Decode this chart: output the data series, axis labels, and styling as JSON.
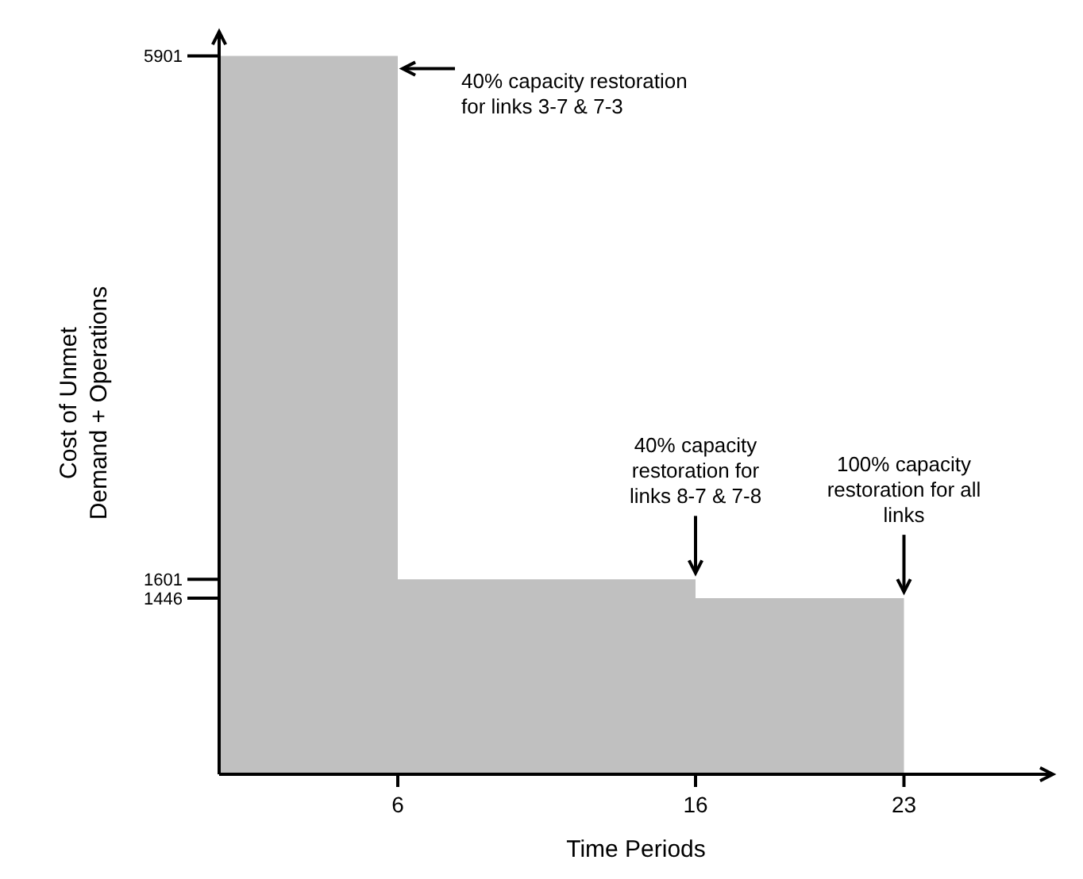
{
  "chart_data": {
    "type": "area",
    "xlabel": "Time Periods",
    "ylabel": "Cost of Unmet\nDemand + Operations",
    "x": [
      0,
      6,
      6,
      16,
      16,
      23
    ],
    "values": [
      5901,
      5901,
      1601,
      1601,
      1446,
      1446
    ],
    "color": "#c0c0c0",
    "xlim": [
      0,
      28
    ],
    "xticks": [
      6,
      16,
      23
    ],
    "ylim": [
      0,
      6100
    ],
    "yticks": [
      1446,
      1601,
      5901
    ],
    "annotations": [
      {
        "text": "40% capacity restoration\nfor links 3-7 & 7-3",
        "x": 6,
        "y": 5901
      },
      {
        "text": "40% capacity\nrestoration for\nlinks 8-7 & 7-8",
        "x": 16,
        "y": 1601
      },
      {
        "text": "100% capacity\nrestoration for all\nlinks",
        "x": 23,
        "y": 1446
      }
    ]
  }
}
